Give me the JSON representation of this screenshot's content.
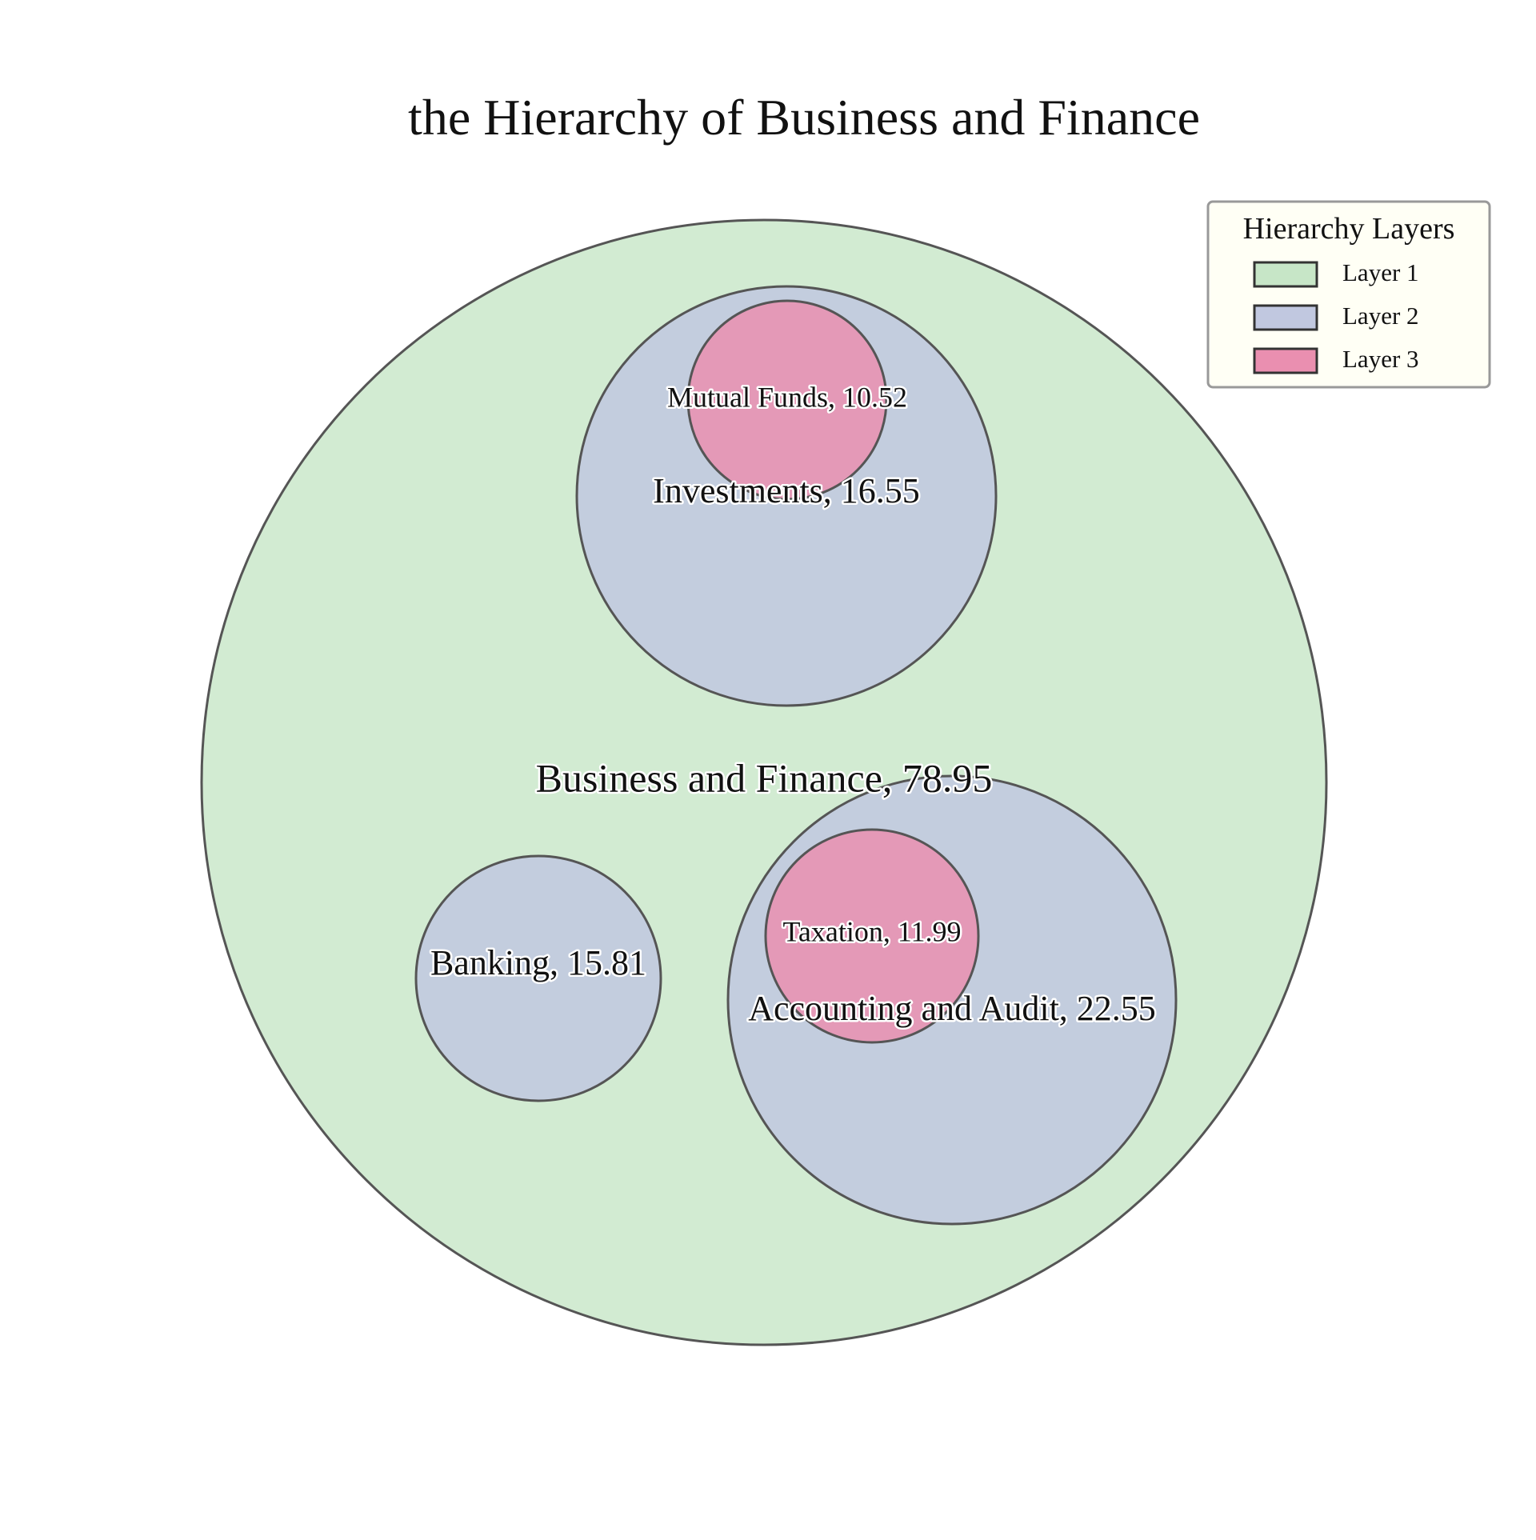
{
  "chart_data": {
    "type": "circle_packing",
    "title": "the Hierarchy of Business and Finance",
    "legend": {
      "title": "Hierarchy Layers",
      "placement": "top-right",
      "items": [
        {
          "label": "Layer 1",
          "color": "#c7e6c7"
        },
        {
          "label": "Layer 2",
          "color": "#c1c8e0"
        },
        {
          "label": "Layer 3",
          "color": "#ea8fb0"
        }
      ]
    },
    "nodes": [
      {
        "id": "business",
        "name": "Business and Finance",
        "value": 78.95,
        "layer": 1,
        "parent": null,
        "label": "Business and Finance, 78.95"
      },
      {
        "id": "investments",
        "name": "Investments",
        "value": 16.55,
        "layer": 2,
        "parent": "business",
        "label": "Investments, 16.55"
      },
      {
        "id": "banking",
        "name": "Banking",
        "value": 15.81,
        "layer": 2,
        "parent": "business",
        "label": "Banking, 15.81"
      },
      {
        "id": "accounting",
        "name": "Accounting and Audit",
        "value": 22.55,
        "layer": 2,
        "parent": "business",
        "label": "Accounting and Audit, 22.55"
      },
      {
        "id": "mutual",
        "name": "Mutual Funds",
        "value": 10.52,
        "layer": 3,
        "parent": "investments",
        "label": "Mutual Funds, 10.52"
      },
      {
        "id": "taxation",
        "name": "Taxation",
        "value": 11.99,
        "layer": 3,
        "parent": "accounting",
        "label": "Taxation, 11.99"
      }
    ]
  }
}
